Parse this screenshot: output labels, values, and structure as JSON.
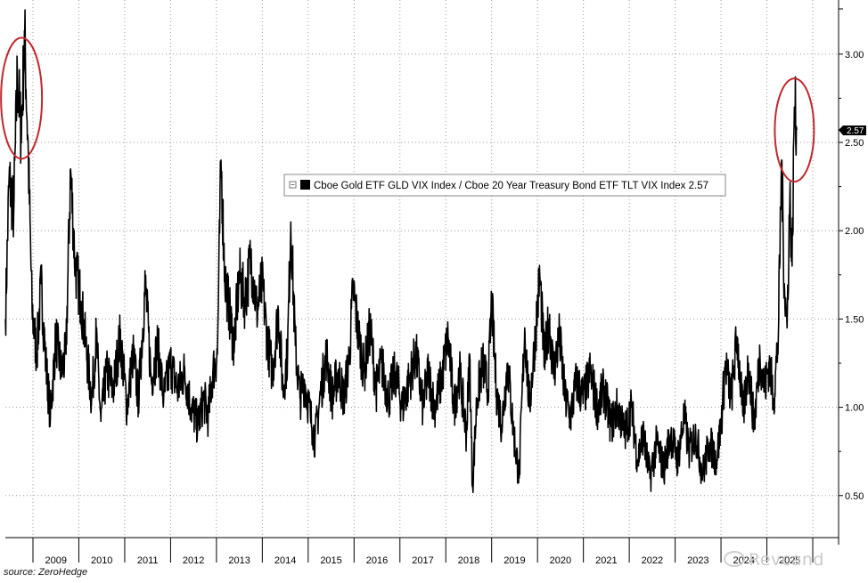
{
  "chart_data": {
    "type": "line",
    "series_name": "Cboe Gold ETF GLD VIX Index / Cboe 20 Year Treasury Bond ETF TLT VIX Index",
    "legend_label": "Cboe Gold ETF GLD VIX Index / Cboe 20 Year Treasury Bond ETF TLT VIX Index 2.57",
    "last_value": 2.57,
    "last_value_label": "2.57",
    "y_ticks": [
      "3.00",
      "2.50",
      "2.00",
      "1.50",
      "1.00",
      "0.50"
    ],
    "y_tick_values": [
      3.0,
      2.5,
      2.0,
      1.5,
      1.0,
      0.5
    ],
    "ylim": [
      0.25,
      3.3
    ],
    "xlim": [
      2008.4,
      2025.9
    ],
    "x_ticks": [
      "2009",
      "2010",
      "2011",
      "2012",
      "2013",
      "2014",
      "2015",
      "2016",
      "2017",
      "2018",
      "2019",
      "2020",
      "2021",
      "2022",
      "2023",
      "2024",
      "2025"
    ],
    "grid": true,
    "line_color": "#000000",
    "highlight_color": "#c0282d",
    "highlights": [
      {
        "name": "2008-2009 peak",
        "x_center": 2008.75,
        "y_center": 2.75
      },
      {
        "name": "2025 spike",
        "x_center": 2025.6,
        "y_center": 2.57
      }
    ],
    "anchors": [
      [
        2008.4,
        1.5
      ],
      [
        2008.48,
        2.3
      ],
      [
        2008.58,
        2.1
      ],
      [
        2008.66,
        2.9
      ],
      [
        2008.74,
        2.55
      ],
      [
        2008.82,
        3.1
      ],
      [
        2008.9,
        2.4
      ],
      [
        2008.98,
        1.55
      ],
      [
        2009.08,
        1.3
      ],
      [
        2009.18,
        1.7
      ],
      [
        2009.28,
        1.25
      ],
      [
        2009.38,
        0.95
      ],
      [
        2009.5,
        1.4
      ],
      [
        2009.62,
        1.2
      ],
      [
        2009.72,
        1.3
      ],
      [
        2009.82,
        2.35
      ],
      [
        2009.92,
        1.8
      ],
      [
        2010.05,
        1.6
      ],
      [
        2010.15,
        1.35
      ],
      [
        2010.28,
        1.05
      ],
      [
        2010.38,
        1.4
      ],
      [
        2010.48,
        0.92
      ],
      [
        2010.6,
        1.2
      ],
      [
        2010.75,
        1.1
      ],
      [
        2010.9,
        1.4
      ],
      [
        2011.05,
        1.0
      ],
      [
        2011.18,
        1.3
      ],
      [
        2011.3,
        1.05
      ],
      [
        2011.45,
        1.7
      ],
      [
        2011.58,
        1.15
      ],
      [
        2011.72,
        1.35
      ],
      [
        2011.85,
        1.05
      ],
      [
        2012.0,
        1.25
      ],
      [
        2012.15,
        1.1
      ],
      [
        2012.3,
        1.2
      ],
      [
        2012.45,
        1.0
      ],
      [
        2012.6,
        0.9
      ],
      [
        2012.72,
        1.05
      ],
      [
        2012.82,
        0.95
      ],
      [
        2012.92,
        1.2
      ],
      [
        2013.02,
        1.3
      ],
      [
        2013.1,
        2.4
      ],
      [
        2013.18,
        1.75
      ],
      [
        2013.28,
        1.55
      ],
      [
        2013.38,
        1.35
      ],
      [
        2013.5,
        1.75
      ],
      [
        2013.62,
        1.6
      ],
      [
        2013.75,
        1.85
      ],
      [
        2013.88,
        1.55
      ],
      [
        2014.0,
        1.7
      ],
      [
        2014.1,
        1.4
      ],
      [
        2014.22,
        1.2
      ],
      [
        2014.35,
        1.55
      ],
      [
        2014.45,
        1.1
      ],
      [
        2014.55,
        1.3
      ],
      [
        2014.62,
        2.05
      ],
      [
        2014.72,
        1.35
      ],
      [
        2014.82,
        1.05
      ],
      [
        2014.92,
        1.15
      ],
      [
        2015.05,
        0.95
      ],
      [
        2015.15,
        0.82
      ],
      [
        2015.28,
        1.1
      ],
      [
        2015.4,
        1.3
      ],
      [
        2015.52,
        1.05
      ],
      [
        2015.65,
        1.2
      ],
      [
        2015.78,
        1.05
      ],
      [
        2015.9,
        1.3
      ],
      [
        2015.98,
        1.68
      ],
      [
        2016.1,
        1.4
      ],
      [
        2016.22,
        1.2
      ],
      [
        2016.35,
        1.45
      ],
      [
        2016.48,
        1.1
      ],
      [
        2016.6,
        1.25
      ],
      [
        2016.75,
        1.05
      ],
      [
        2016.9,
        1.2
      ],
      [
        2017.05,
        1.0
      ],
      [
        2017.2,
        1.15
      ],
      [
        2017.35,
        1.3
      ],
      [
        2017.5,
        1.0
      ],
      [
        2017.62,
        1.2
      ],
      [
        2017.75,
        1.0
      ],
      [
        2017.9,
        1.15
      ],
      [
        2018.05,
        1.4
      ],
      [
        2018.18,
        1.0
      ],
      [
        2018.3,
        1.2
      ],
      [
        2018.45,
        0.85
      ],
      [
        2018.52,
        1.3
      ],
      [
        2018.58,
        0.55
      ],
      [
        2018.68,
        1.05
      ],
      [
        2018.8,
        1.25
      ],
      [
        2018.92,
        1.1
      ],
      [
        2019.0,
        1.6
      ],
      [
        2019.1,
        1.1
      ],
      [
        2019.22,
        0.9
      ],
      [
        2019.35,
        1.25
      ],
      [
        2019.48,
        0.85
      ],
      [
        2019.6,
        0.6
      ],
      [
        2019.72,
        1.45
      ],
      [
        2019.82,
        1.0
      ],
      [
        2019.92,
        1.3
      ],
      [
        2020.05,
        1.75
      ],
      [
        2020.15,
        1.25
      ],
      [
        2020.25,
        1.5
      ],
      [
        2020.35,
        1.2
      ],
      [
        2020.48,
        1.4
      ],
      [
        2020.6,
        1.05
      ],
      [
        2020.72,
        0.95
      ],
      [
        2020.85,
        1.15
      ],
      [
        2021.0,
        1.05
      ],
      [
        2021.15,
        1.2
      ],
      [
        2021.3,
        1.0
      ],
      [
        2021.45,
        1.1
      ],
      [
        2021.6,
        0.9
      ],
      [
        2021.75,
        1.0
      ],
      [
        2021.9,
        0.85
      ],
      [
        2022.05,
        1.0
      ],
      [
        2022.18,
        0.7
      ],
      [
        2022.3,
        0.85
      ],
      [
        2022.45,
        0.6
      ],
      [
        2022.6,
        0.8
      ],
      [
        2022.75,
        0.65
      ],
      [
        2022.9,
        0.85
      ],
      [
        2023.05,
        0.7
      ],
      [
        2023.2,
        0.95
      ],
      [
        2023.3,
        0.75
      ],
      [
        2023.45,
        0.85
      ],
      [
        2023.6,
        0.62
      ],
      [
        2023.75,
        0.8
      ],
      [
        2023.9,
        0.7
      ],
      [
        2024.0,
        0.9
      ],
      [
        2024.1,
        1.25
      ],
      [
        2024.22,
        1.05
      ],
      [
        2024.35,
        1.4
      ],
      [
        2024.48,
        0.95
      ],
      [
        2024.6,
        1.25
      ],
      [
        2024.72,
        0.9
      ],
      [
        2024.85,
        1.3
      ],
      [
        2024.95,
        1.1
      ],
      [
        2025.05,
        1.25
      ],
      [
        2025.15,
        1.05
      ],
      [
        2025.25,
        1.4
      ],
      [
        2025.32,
        2.4
      ],
      [
        2025.38,
        1.7
      ],
      [
        2025.44,
        1.45
      ],
      [
        2025.5,
        2.2
      ],
      [
        2025.55,
        1.8
      ],
      [
        2025.6,
        2.7
      ],
      [
        2025.65,
        2.57
      ]
    ]
  },
  "footer": {
    "source": "source: ZeroHedge",
    "watermark": "Revcand"
  }
}
